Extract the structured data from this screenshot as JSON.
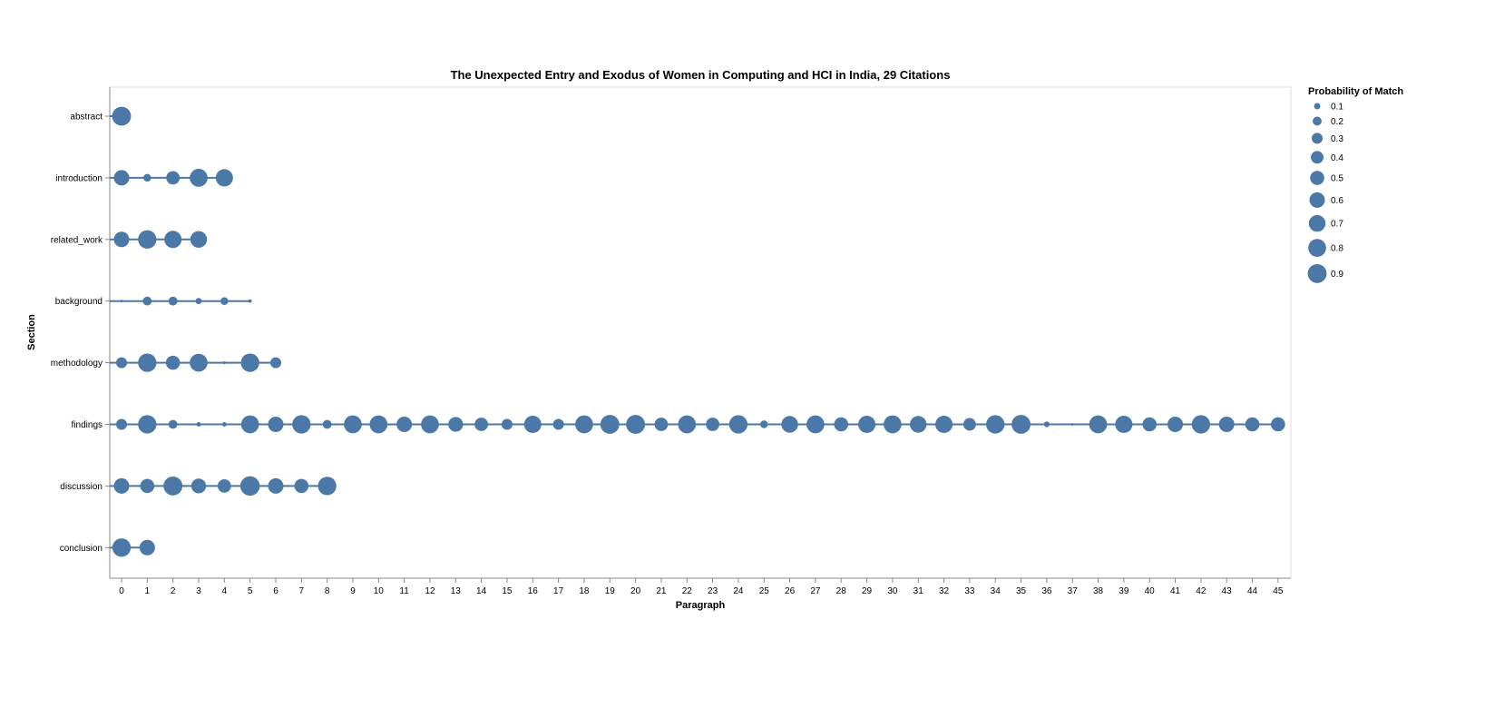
{
  "chart_data": {
    "type": "scatter",
    "title": "The Unexpected Entry and Exodus of Women in Computing and HCI in India, 29 Citations",
    "xlabel": "Paragraph",
    "ylabel": "Section",
    "x_ticks": [
      0,
      1,
      2,
      3,
      4,
      5,
      6,
      7,
      8,
      9,
      10,
      11,
      12,
      13,
      14,
      15,
      16,
      17,
      18,
      19,
      20,
      21,
      22,
      23,
      24,
      25,
      26,
      27,
      28,
      29,
      30,
      31,
      32,
      33,
      34,
      35,
      36,
      37,
      38,
      39,
      40,
      41,
      42,
      43,
      44,
      45
    ],
    "categories": [
      "abstract",
      "introduction",
      "related_work",
      "background",
      "methodology",
      "findings",
      "discussion",
      "conclusion"
    ],
    "legend": {
      "title": "Probability of Match",
      "placement": "top-right",
      "labels": [
        "0.1",
        "0.2",
        "0.3",
        "0.4",
        "0.5",
        "0.6",
        "0.7",
        "0.8",
        "0.9"
      ],
      "values": [
        0.1,
        0.2,
        0.3,
        0.4,
        0.5,
        0.6,
        0.7,
        0.8,
        0.9
      ]
    },
    "grid": false,
    "color": "#4c78a8",
    "series": [
      {
        "category": "abstract",
        "points": [
          [
            0,
            0.9
          ]
        ]
      },
      {
        "category": "introduction",
        "points": [
          [
            0,
            0.6
          ],
          [
            1,
            0.15
          ],
          [
            2,
            0.45
          ],
          [
            3,
            0.8
          ],
          [
            4,
            0.75
          ]
        ]
      },
      {
        "category": "related_work",
        "points": [
          [
            0,
            0.6
          ],
          [
            1,
            0.85
          ],
          [
            2,
            0.75
          ],
          [
            3,
            0.7
          ]
        ]
      },
      {
        "category": "background",
        "points": [
          [
            0,
            0.01
          ],
          [
            1,
            0.2
          ],
          [
            2,
            0.2
          ],
          [
            3,
            0.1
          ],
          [
            4,
            0.15
          ],
          [
            5,
            0.03
          ]
        ]
      },
      {
        "category": "methodology",
        "points": [
          [
            0,
            0.3
          ],
          [
            1,
            0.85
          ],
          [
            2,
            0.5
          ],
          [
            3,
            0.8
          ],
          [
            4,
            0.02
          ],
          [
            5,
            0.85
          ],
          [
            6,
            0.3
          ]
        ]
      },
      {
        "category": "findings",
        "points": [
          [
            0,
            0.3
          ],
          [
            1,
            0.85
          ],
          [
            2,
            0.2
          ],
          [
            3,
            0.05
          ],
          [
            4,
            0.05
          ],
          [
            5,
            0.8
          ],
          [
            6,
            0.6
          ],
          [
            7,
            0.85
          ],
          [
            8,
            0.2
          ],
          [
            9,
            0.8
          ],
          [
            10,
            0.8
          ],
          [
            11,
            0.6
          ],
          [
            12,
            0.8
          ],
          [
            13,
            0.55
          ],
          [
            14,
            0.45
          ],
          [
            15,
            0.3
          ],
          [
            16,
            0.75
          ],
          [
            17,
            0.3
          ],
          [
            18,
            0.8
          ],
          [
            19,
            0.9
          ],
          [
            20,
            0.9
          ],
          [
            21,
            0.45
          ],
          [
            22,
            0.8
          ],
          [
            23,
            0.45
          ],
          [
            24,
            0.85
          ],
          [
            25,
            0.15
          ],
          [
            26,
            0.7
          ],
          [
            27,
            0.8
          ],
          [
            28,
            0.5
          ],
          [
            29,
            0.75
          ],
          [
            30,
            0.8
          ],
          [
            31,
            0.7
          ],
          [
            32,
            0.75
          ],
          [
            33,
            0.4
          ],
          [
            34,
            0.85
          ],
          [
            35,
            0.9
          ],
          [
            36,
            0.08
          ],
          [
            37,
            0.01
          ],
          [
            38,
            0.8
          ],
          [
            39,
            0.75
          ],
          [
            40,
            0.5
          ],
          [
            41,
            0.6
          ],
          [
            42,
            0.85
          ],
          [
            43,
            0.6
          ],
          [
            44,
            0.5
          ],
          [
            45,
            0.5
          ]
        ]
      },
      {
        "category": "discussion",
        "points": [
          [
            0,
            0.6
          ],
          [
            1,
            0.5
          ],
          [
            2,
            0.9
          ],
          [
            3,
            0.55
          ],
          [
            4,
            0.45
          ],
          [
            5,
            0.95
          ],
          [
            6,
            0.6
          ],
          [
            7,
            0.5
          ],
          [
            8,
            0.85
          ]
        ]
      },
      {
        "category": "conclusion",
        "points": [
          [
            0,
            0.85
          ],
          [
            1,
            0.6
          ]
        ]
      }
    ]
  }
}
